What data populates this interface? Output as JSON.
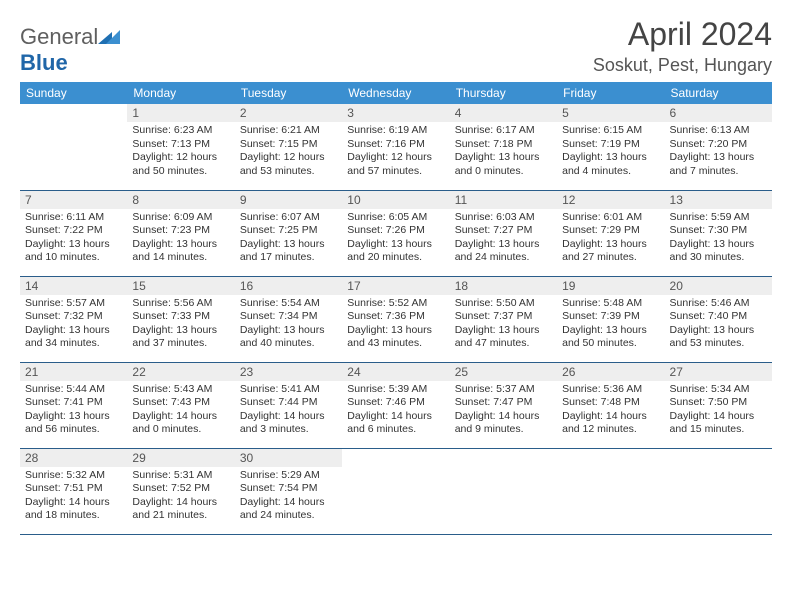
{
  "brand": {
    "name_part1": "General",
    "name_part2": "Blue"
  },
  "title": "April 2024",
  "location": "Soskut, Pest, Hungary",
  "accent_color": "#3b8fd0",
  "rule_color": "#2a5d8a",
  "dayname_bg": "#eeeeee",
  "weekdays": [
    "Sunday",
    "Monday",
    "Tuesday",
    "Wednesday",
    "Thursday",
    "Friday",
    "Saturday"
  ],
  "first_weekday_index": 1,
  "days": [
    {
      "n": 1,
      "sunrise": "6:23 AM",
      "sunset": "7:13 PM",
      "daylight": "12 hours and 50 minutes."
    },
    {
      "n": 2,
      "sunrise": "6:21 AM",
      "sunset": "7:15 PM",
      "daylight": "12 hours and 53 minutes."
    },
    {
      "n": 3,
      "sunrise": "6:19 AM",
      "sunset": "7:16 PM",
      "daylight": "12 hours and 57 minutes."
    },
    {
      "n": 4,
      "sunrise": "6:17 AM",
      "sunset": "7:18 PM",
      "daylight": "13 hours and 0 minutes."
    },
    {
      "n": 5,
      "sunrise": "6:15 AM",
      "sunset": "7:19 PM",
      "daylight": "13 hours and 4 minutes."
    },
    {
      "n": 6,
      "sunrise": "6:13 AM",
      "sunset": "7:20 PM",
      "daylight": "13 hours and 7 minutes."
    },
    {
      "n": 7,
      "sunrise": "6:11 AM",
      "sunset": "7:22 PM",
      "daylight": "13 hours and 10 minutes."
    },
    {
      "n": 8,
      "sunrise": "6:09 AM",
      "sunset": "7:23 PM",
      "daylight": "13 hours and 14 minutes."
    },
    {
      "n": 9,
      "sunrise": "6:07 AM",
      "sunset": "7:25 PM",
      "daylight": "13 hours and 17 minutes."
    },
    {
      "n": 10,
      "sunrise": "6:05 AM",
      "sunset": "7:26 PM",
      "daylight": "13 hours and 20 minutes."
    },
    {
      "n": 11,
      "sunrise": "6:03 AM",
      "sunset": "7:27 PM",
      "daylight": "13 hours and 24 minutes."
    },
    {
      "n": 12,
      "sunrise": "6:01 AM",
      "sunset": "7:29 PM",
      "daylight": "13 hours and 27 minutes."
    },
    {
      "n": 13,
      "sunrise": "5:59 AM",
      "sunset": "7:30 PM",
      "daylight": "13 hours and 30 minutes."
    },
    {
      "n": 14,
      "sunrise": "5:57 AM",
      "sunset": "7:32 PM",
      "daylight": "13 hours and 34 minutes."
    },
    {
      "n": 15,
      "sunrise": "5:56 AM",
      "sunset": "7:33 PM",
      "daylight": "13 hours and 37 minutes."
    },
    {
      "n": 16,
      "sunrise": "5:54 AM",
      "sunset": "7:34 PM",
      "daylight": "13 hours and 40 minutes."
    },
    {
      "n": 17,
      "sunrise": "5:52 AM",
      "sunset": "7:36 PM",
      "daylight": "13 hours and 43 minutes."
    },
    {
      "n": 18,
      "sunrise": "5:50 AM",
      "sunset": "7:37 PM",
      "daylight": "13 hours and 47 minutes."
    },
    {
      "n": 19,
      "sunrise": "5:48 AM",
      "sunset": "7:39 PM",
      "daylight": "13 hours and 50 minutes."
    },
    {
      "n": 20,
      "sunrise": "5:46 AM",
      "sunset": "7:40 PM",
      "daylight": "13 hours and 53 minutes."
    },
    {
      "n": 21,
      "sunrise": "5:44 AM",
      "sunset": "7:41 PM",
      "daylight": "13 hours and 56 minutes."
    },
    {
      "n": 22,
      "sunrise": "5:43 AM",
      "sunset": "7:43 PM",
      "daylight": "14 hours and 0 minutes."
    },
    {
      "n": 23,
      "sunrise": "5:41 AM",
      "sunset": "7:44 PM",
      "daylight": "14 hours and 3 minutes."
    },
    {
      "n": 24,
      "sunrise": "5:39 AM",
      "sunset": "7:46 PM",
      "daylight": "14 hours and 6 minutes."
    },
    {
      "n": 25,
      "sunrise": "5:37 AM",
      "sunset": "7:47 PM",
      "daylight": "14 hours and 9 minutes."
    },
    {
      "n": 26,
      "sunrise": "5:36 AM",
      "sunset": "7:48 PM",
      "daylight": "14 hours and 12 minutes."
    },
    {
      "n": 27,
      "sunrise": "5:34 AM",
      "sunset": "7:50 PM",
      "daylight": "14 hours and 15 minutes."
    },
    {
      "n": 28,
      "sunrise": "5:32 AM",
      "sunset": "7:51 PM",
      "daylight": "14 hours and 18 minutes."
    },
    {
      "n": 29,
      "sunrise": "5:31 AM",
      "sunset": "7:52 PM",
      "daylight": "14 hours and 21 minutes."
    },
    {
      "n": 30,
      "sunrise": "5:29 AM",
      "sunset": "7:54 PM",
      "daylight": "14 hours and 24 minutes."
    }
  ],
  "labels": {
    "sunrise": "Sunrise:",
    "sunset": "Sunset:",
    "daylight": "Daylight:"
  }
}
